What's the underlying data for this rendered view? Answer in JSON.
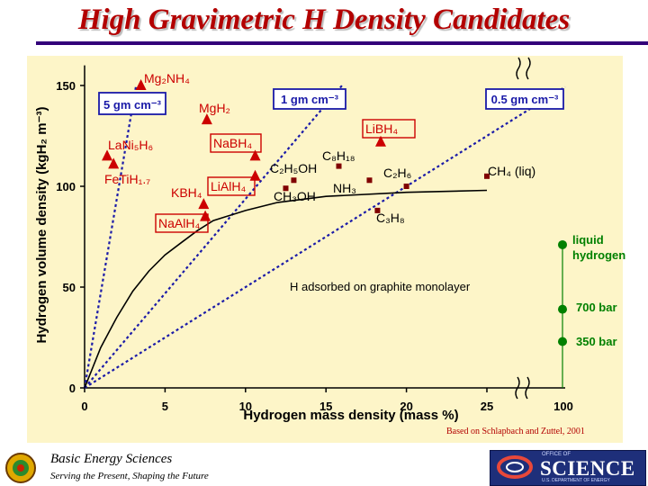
{
  "page": {
    "title": "High Gravimetric H Density Candidates",
    "source_note": "Based on Schlapbach and Zuttel, 2001",
    "footer_org": "Basic Energy Sciences",
    "footer_tagline": "Serving the Present, Shaping the Future",
    "science_office_line": "OFFICE OF",
    "science_word": "SCIENCE",
    "science_dept_line": "U.S. DEPARTMENT OF ENERGY"
  },
  "colors": {
    "title": "#b30000",
    "panel": "#fdf5c8",
    "triangle": "#cc0000",
    "square": "#800000",
    "liquid_markers": "#008000",
    "line_labels": "#1a1aa8",
    "box_border_blue": "#1a1aa8",
    "box_border_red": "#cc0000"
  },
  "chart_data": {
    "type": "scatter",
    "xlabel": "Hydrogen mass density (mass %)",
    "ylabel": "Hydrogen volume density (kgH₂ m⁻³)",
    "xlim": [
      0,
      28
    ],
    "ylim": [
      0,
      160
    ],
    "x_ticks": [
      0,
      5,
      10,
      15,
      20,
      25
    ],
    "x_break_label": "100",
    "y_ticks": [
      0,
      50,
      100,
      150
    ],
    "grid": false,
    "triangles": [
      {
        "label": "Mg₂NH₄",
        "x": 3.5,
        "y": 150
      },
      {
        "label": "MgH₂",
        "x": 7.6,
        "y": 133
      },
      {
        "label": "LaNi₅H₆",
        "x": 1.4,
        "y": 115
      },
      {
        "label": "FeTiH₁.₇",
        "x": 1.8,
        "y": 111
      },
      {
        "label": "LiBH₄",
        "x": 18.4,
        "y": 122
      },
      {
        "label": "NaBH₄",
        "x": 10.6,
        "y": 115
      },
      {
        "label": "LiAlH₄",
        "x": 10.6,
        "y": 105
      },
      {
        "label": "KBH₄",
        "x": 7.4,
        "y": 91
      },
      {
        "label": "NaAlH₄",
        "x": 7.5,
        "y": 85
      }
    ],
    "squares": [
      {
        "label": "C₈H₁₈",
        "x": 15.8,
        "y": 110
      },
      {
        "label": "C₂H₅OH",
        "x": 13.0,
        "y": 103
      },
      {
        "label": "CH₃OH",
        "x": 12.5,
        "y": 99
      },
      {
        "label": "NH₃",
        "x": 17.7,
        "y": 103
      },
      {
        "label": "C₂H₆",
        "x": 20.0,
        "y": 100
      },
      {
        "label": "C₃H₈",
        "x": 18.2,
        "y": 88
      },
      {
        "label": "CH₄ (liq)",
        "x": 25.0,
        "y": 105
      }
    ],
    "reference_lines": [
      {
        "label": "5 gm cm⁻³",
        "density": 5
      },
      {
        "label": "1 gm cm⁻³",
        "density": 1
      },
      {
        "label": "0.5 gm cm⁻³",
        "density": 0.5
      }
    ],
    "curve": {
      "label": "H adsorbed on graphite monolayer",
      "x": [
        0,
        1,
        2,
        3,
        4,
        5,
        6,
        7,
        8,
        10,
        12,
        15,
        20,
        25
      ],
      "y": [
        0,
        20,
        35,
        48,
        58,
        66,
        72,
        78,
        83,
        88,
        92,
        95,
        97,
        98
      ]
    },
    "right_markers": [
      {
        "label": "liquid hydrogen",
        "y": 71
      },
      {
        "label": "700 bar",
        "y": 39
      },
      {
        "label": "350 bar",
        "y": 23
      }
    ]
  }
}
